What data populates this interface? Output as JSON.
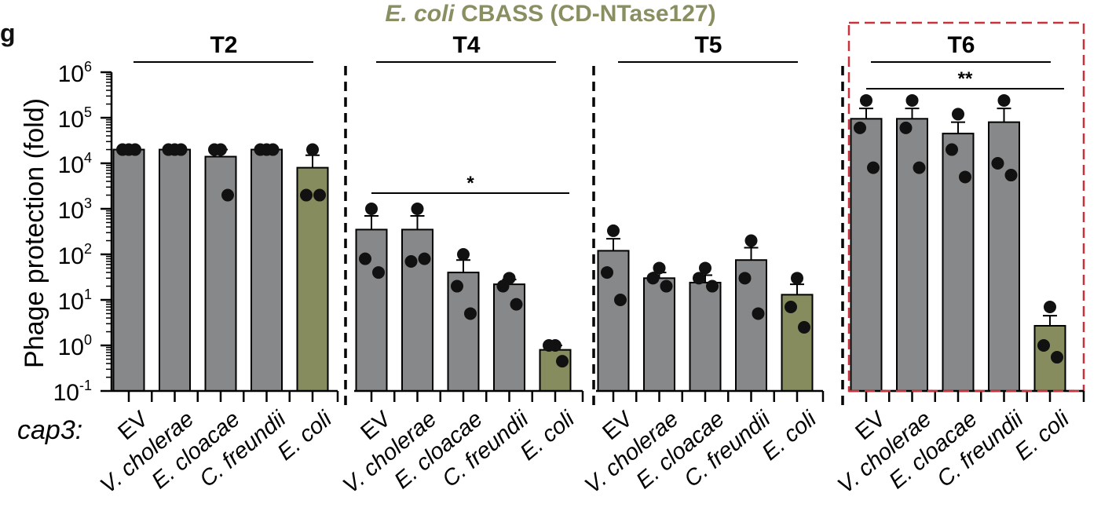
{
  "figure": {
    "panel_letter": "g",
    "title_italic": "E. coli",
    "title_rest": " CBASS (CD-NTase127)",
    "title_color": "#8a8f62",
    "row_label": "cap3:",
    "highlight_color": "#c8323c"
  },
  "chart_data": {
    "type": "bar",
    "scale": "log",
    "ylabel": "Phage protection (fold)",
    "ylim": [
      0.1,
      1000000
    ],
    "yticks": [
      {
        "base": "10",
        "exp": "6"
      },
      {
        "base": "10",
        "exp": "5"
      },
      {
        "base": "10",
        "exp": "4"
      },
      {
        "base": "10",
        "exp": "3"
      },
      {
        "base": "10",
        "exp": "2"
      },
      {
        "base": "10",
        "exp": "1"
      },
      {
        "base": "10",
        "exp": "0"
      },
      {
        "base": "10",
        "exp": "-1"
      }
    ],
    "categories": [
      "EV",
      "V. cholerae",
      "E. cloacae",
      "C. freundii",
      "E. coli"
    ],
    "bar_colors": {
      "control": "#878889",
      "ecoli": "#868c5d"
    },
    "panels": [
      {
        "name": "T2",
        "values": [
          20000,
          20000,
          14000,
          20000,
          8000
        ],
        "error_upper": [
          20000,
          20000,
          20000,
          20000,
          15000
        ],
        "points": [
          [
            20000,
            20000,
            20000
          ],
          [
            20000,
            20000,
            20000
          ],
          [
            20000,
            20000,
            2000
          ],
          [
            20000,
            20000,
            20000
          ],
          [
            20000,
            2000,
            2000
          ]
        ],
        "significance": ""
      },
      {
        "name": "T4",
        "values": [
          350,
          350,
          40,
          22,
          0.8
        ],
        "error_upper": [
          700,
          700,
          75,
          28,
          1.0
        ],
        "points": [
          [
            1000,
            80,
            40
          ],
          [
            1000,
            70,
            80
          ],
          [
            100,
            20,
            5
          ],
          [
            30,
            20,
            8
          ],
          [
            1.0,
            1.0,
            0.45
          ]
        ],
        "significance": "*"
      },
      {
        "name": "T5",
        "values": [
          120,
          30,
          24,
          75,
          13
        ],
        "error_upper": [
          220,
          40,
          35,
          140,
          22
        ],
        "points": [
          [
            330,
            40,
            10
          ],
          [
            50,
            30,
            20
          ],
          [
            50,
            30,
            20
          ],
          [
            200,
            30,
            5
          ],
          [
            30,
            7,
            2.5
          ]
        ],
        "significance": ""
      },
      {
        "name": "T6",
        "values": [
          95000,
          95000,
          45000,
          80000,
          2.7
        ],
        "error_upper": [
          160000,
          160000,
          80000,
          160000,
          4.5
        ],
        "points": [
          [
            240000,
            60000,
            8000
          ],
          [
            240000,
            60000,
            8000
          ],
          [
            120000,
            20000,
            5000
          ],
          [
            240000,
            10000,
            5500
          ],
          [
            7,
            1.0,
            0.55
          ]
        ],
        "significance": "**"
      }
    ]
  }
}
